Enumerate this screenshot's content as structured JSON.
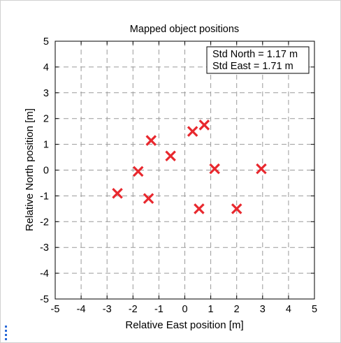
{
  "chart_data": {
    "type": "scatter",
    "title": "Mapped object positions",
    "xlabel": "Relative East position [m]",
    "ylabel": "Relative North position [m]",
    "xlim": [
      -5,
      5
    ],
    "ylim": [
      -5,
      5
    ],
    "xticks": [
      "-5",
      "-4",
      "-3",
      "-2",
      "-1",
      "0",
      "1",
      "2",
      "3",
      "4",
      "5"
    ],
    "yticks": [
      "5",
      "4",
      "3",
      "2",
      "1",
      "0",
      "-1",
      "-2",
      "-3",
      "-4",
      "-5"
    ],
    "xtick_values": [
      -5,
      -4,
      -3,
      -2,
      -1,
      0,
      1,
      2,
      3,
      4,
      5
    ],
    "ytick_values": [
      5,
      4,
      3,
      2,
      1,
      0,
      -1,
      -2,
      -3,
      -4,
      -5
    ],
    "grid": true,
    "marker": "x",
    "marker_color": "#e8282e",
    "points": [
      {
        "x": -2.6,
        "y": -0.9
      },
      {
        "x": -1.8,
        "y": -0.05
      },
      {
        "x": -1.4,
        "y": -1.1
      },
      {
        "x": -1.3,
        "y": 1.15
      },
      {
        "x": -0.55,
        "y": 0.55
      },
      {
        "x": 0.3,
        "y": 1.5
      },
      {
        "x": 0.75,
        "y": 1.75
      },
      {
        "x": 1.15,
        "y": 0.05
      },
      {
        "x": 0.55,
        "y": -1.5
      },
      {
        "x": 2.0,
        "y": -1.5
      },
      {
        "x": 2.95,
        "y": 0.05
      }
    ],
    "annotations": [
      "Std North = 1.17 m",
      "Std East = 1.71 m"
    ],
    "annotation_placement": "top-right"
  },
  "handle_icon": "vertical-dots-icon"
}
